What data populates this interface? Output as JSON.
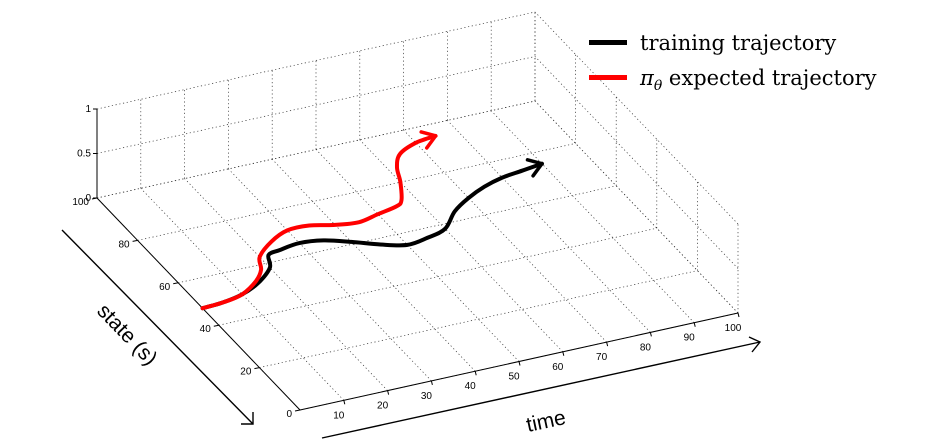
{
  "chart_data": {
    "type": "line",
    "projection": "3d",
    "xlabel": "time",
    "ylabel": "state (s)",
    "zlabel": "",
    "xlim": [
      0,
      100
    ],
    "ylim": [
      0,
      100
    ],
    "zlim": [
      0,
      1
    ],
    "x_ticks": [
      "10",
      "20",
      "30",
      "40",
      "50",
      "60",
      "70",
      "80",
      "90",
      "100"
    ],
    "y_ticks": [
      "0",
      "20",
      "40",
      "60",
      "80",
      "100"
    ],
    "z_ticks": [
      "0",
      "0.5",
      "1"
    ],
    "grid": true,
    "legend_position": "top-right",
    "series": [
      {
        "name": "training trajectory",
        "color": "#000000",
        "x": [
          0,
          5,
          10,
          15,
          20,
          22,
          25,
          30,
          35,
          40,
          45,
          50,
          55,
          60,
          65,
          70,
          75,
          80,
          85,
          90
        ],
        "y": [
          48,
          48.5,
          50,
          53,
          58,
          63,
          64,
          65,
          64,
          61,
          57.5,
          55,
          56,
          58,
          64,
          68,
          71,
          73,
          74,
          75
        ]
      },
      {
        "name": "π_θ expected trajectory",
        "color": "#ff0000",
        "x": [
          0,
          5,
          10,
          15,
          18,
          20,
          25,
          30,
          35,
          40,
          45,
          50,
          55,
          57,
          60,
          62,
          65,
          70,
          75
        ],
        "y": [
          48,
          48.5,
          50,
          54,
          58,
          63,
          68,
          71,
          71,
          69,
          68,
          69.5,
          71,
          73,
          80,
          86,
          91,
          94,
          95
        ]
      }
    ]
  },
  "legend": {
    "training_label": "training trajectory",
    "policy_label_symbol": "π",
    "policy_label_subscript": "θ",
    "policy_label_rest": " expected trajectory"
  },
  "axes": {
    "x_label": "time",
    "y_label": "state (s)"
  }
}
